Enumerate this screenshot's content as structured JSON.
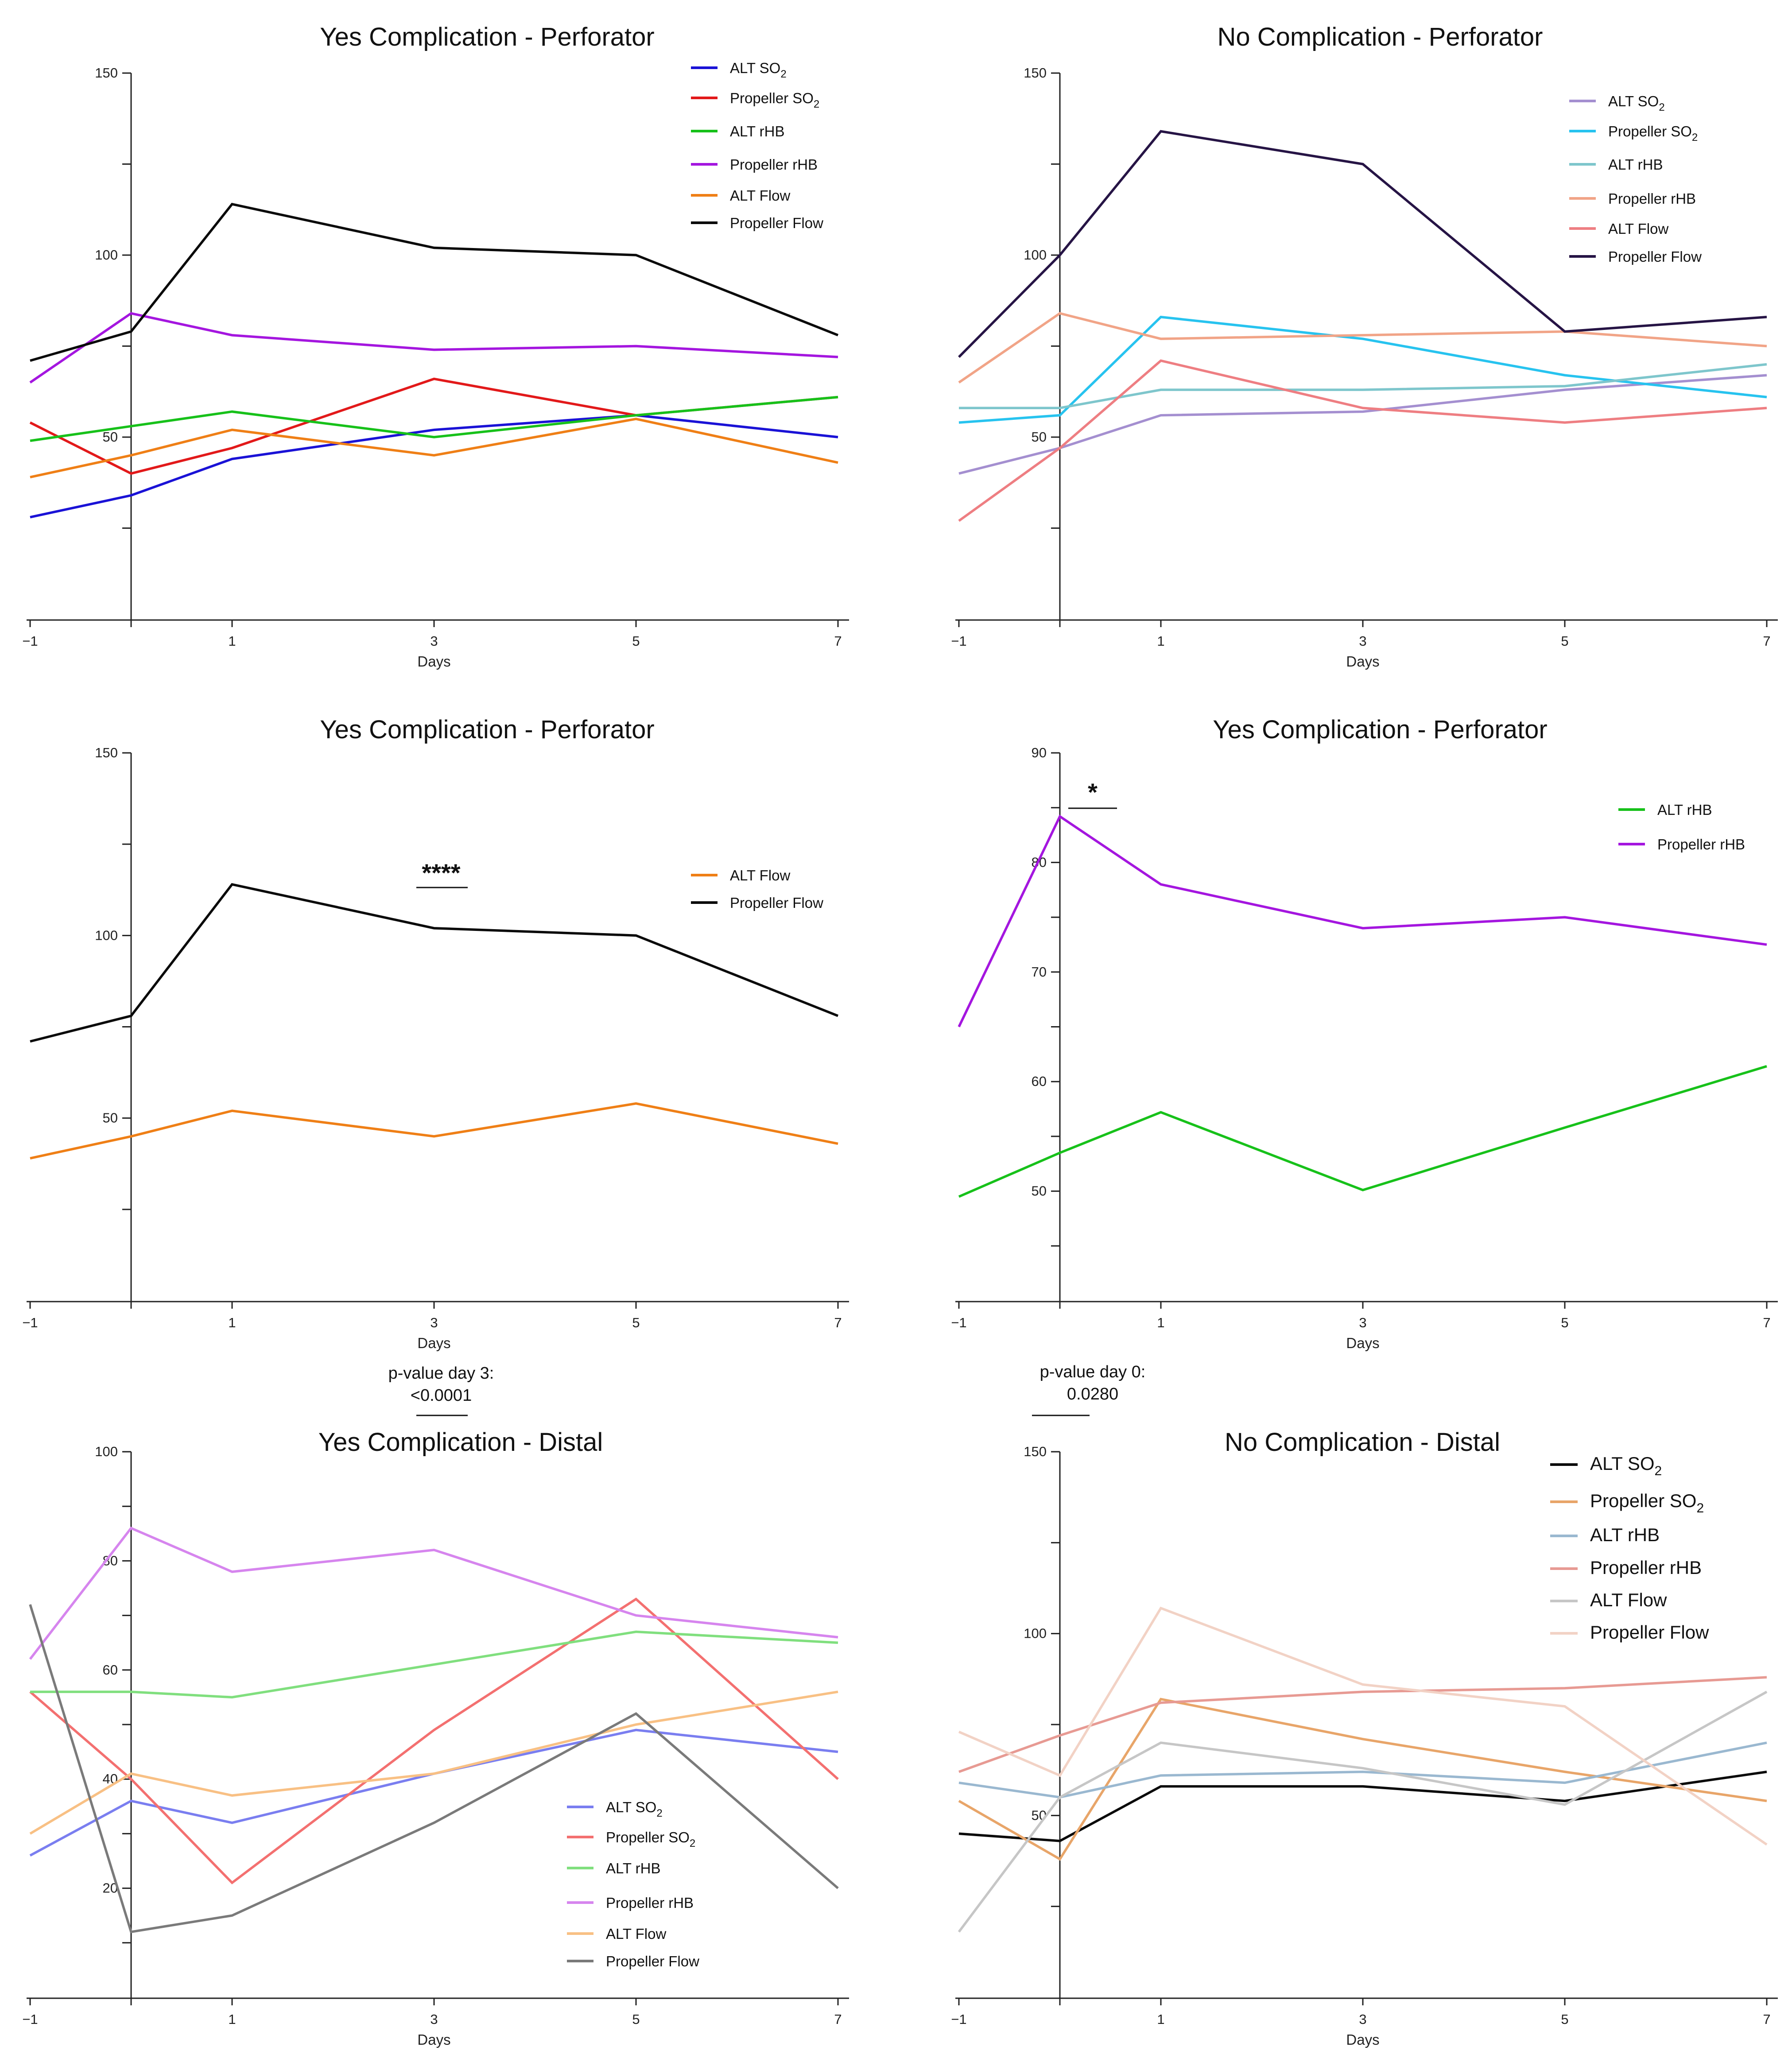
{
  "chart_data": [
    {
      "type": "line",
      "title": "Yes Complication - Perforator",
      "xlabel": "Days",
      "ylabel": "",
      "x": [
        -1,
        0,
        1,
        3,
        5,
        7
      ],
      "xticks": [
        "−1",
        "1",
        "3",
        "5",
        "7"
      ],
      "ylim": [
        0,
        150
      ],
      "yticks": [
        "50",
        "100",
        "150"
      ],
      "series": [
        {
          "name": "ALT SO",
          "sub": "2",
          "color": "#1a12d6",
          "values": [
            28,
            34,
            44,
            52,
            56,
            50
          ]
        },
        {
          "name": "Propeller SO",
          "sub": "2",
          "color": "#e2191a",
          "values": [
            54,
            40,
            47,
            66,
            56,
            61
          ]
        },
        {
          "name": "ALT rHB",
          "sub": "",
          "color": "#17c11a",
          "values": [
            49,
            53,
            57,
            50,
            56,
            61
          ]
        },
        {
          "name": "Propeller rHB",
          "sub": "",
          "color": "#a416df",
          "values": [
            65,
            84,
            78,
            74,
            75,
            72
          ]
        },
        {
          "name": "ALT Flow",
          "sub": "",
          "color": "#ef7f16",
          "values": [
            39,
            45,
            52,
            45,
            55,
            43
          ]
        },
        {
          "name": "Propeller Flow",
          "sub": "",
          "color": "#0a0a0a",
          "values": [
            71,
            79,
            114,
            102,
            100,
            78
          ]
        }
      ]
    },
    {
      "type": "line",
      "title": "No Complication - Perforator",
      "xlabel": "Days",
      "ylabel": "",
      "x": [
        -1,
        0,
        1,
        3,
        5,
        7
      ],
      "xticks": [
        "−1",
        "1",
        "3",
        "5",
        "7"
      ],
      "ylim": [
        0,
        150
      ],
      "yticks": [
        "50",
        "100",
        "150"
      ],
      "series": [
        {
          "name": "ALT SO",
          "sub": "2",
          "color": "#a48fd0",
          "values": [
            40,
            47,
            56,
            57,
            63,
            67
          ]
        },
        {
          "name": "Propeller SO",
          "sub": "2",
          "color": "#27c3ef",
          "values": [
            54,
            56,
            83,
            77,
            67,
            61
          ]
        },
        {
          "name": "ALT rHB",
          "sub": "",
          "color": "#7ec6cc",
          "values": [
            58,
            58,
            63,
            63,
            64,
            70
          ]
        },
        {
          "name": "Propeller rHB",
          "sub": "",
          "color": "#f1a487",
          "values": [
            65,
            84,
            77,
            78,
            79,
            75
          ]
        },
        {
          "name": "ALT Flow",
          "sub": "",
          "color": "#ee7e82",
          "values": [
            27,
            47,
            71,
            58,
            54,
            58
          ]
        },
        {
          "name": "Propeller Flow",
          "sub": "",
          "color": "#261445",
          "values": [
            72,
            100,
            134,
            125,
            79,
            83
          ]
        }
      ]
    },
    {
      "type": "line",
      "title": "Yes Complication - Perforator",
      "xlabel": "Days",
      "ylabel": "",
      "x": [
        -1,
        0,
        1,
        3,
        5,
        7
      ],
      "xticks": [
        "−1",
        "1",
        "3",
        "5",
        "7"
      ],
      "ylim": [
        0,
        150
      ],
      "yticks": [
        "50",
        "100",
        "150"
      ],
      "significance": "****",
      "pvalue_label": "p-value day 3:",
      "pvalue": "<0.0001",
      "series": [
        {
          "name": "ALT Flow",
          "sub": "",
          "color": "#ef7f16",
          "values": [
            39,
            45,
            52,
            45,
            54,
            43
          ]
        },
        {
          "name": "Propeller Flow",
          "sub": "",
          "color": "#0a0a0a",
          "values": [
            71,
            78,
            114,
            102,
            100,
            78
          ]
        }
      ]
    },
    {
      "type": "line",
      "title": "Yes Complication - Perforator",
      "xlabel": "Days",
      "ylabel": "",
      "x": [
        -1,
        0,
        1,
        3,
        5,
        7
      ],
      "xticks": [
        "−1",
        "1",
        "3",
        "5",
        "7"
      ],
      "ylim": [
        40,
        90
      ],
      "yticks": [
        "50",
        "60",
        "70",
        "80",
        "90"
      ],
      "significance": "*",
      "pvalue_label": "p-value day 0:",
      "pvalue": "0.0280",
      "series": [
        {
          "name": "ALT rHB",
          "sub": "",
          "color": "#17c11a",
          "values": [
            49.5,
            53.5,
            57.2,
            50.1,
            55.8,
            61.4
          ]
        },
        {
          "name": "Propeller rHB",
          "sub": "",
          "color": "#a416df",
          "values": [
            65,
            84.2,
            78,
            74,
            75,
            72.5
          ]
        }
      ]
    },
    {
      "type": "line",
      "title": "Yes Complication - Distal",
      "xlabel": "Days",
      "ylabel": "",
      "x": [
        -1,
        0,
        1,
        3,
        5,
        7
      ],
      "xticks": [
        "−1",
        "1",
        "3",
        "5",
        "7"
      ],
      "ylim": [
        0,
        100
      ],
      "yticks": [
        "20",
        "40",
        "60",
        "80",
        "100"
      ],
      "series": [
        {
          "name": "ALT SO",
          "sub": "2",
          "color": "#7a7ef0",
          "values": [
            26,
            36,
            32,
            41,
            49,
            45
          ]
        },
        {
          "name": "Propeller SO",
          "sub": "2",
          "color": "#f37070",
          "values": [
            56,
            40,
            21,
            49,
            73,
            40
          ]
        },
        {
          "name": "ALT rHB",
          "sub": "",
          "color": "#80df7e",
          "values": [
            56,
            56,
            55,
            61,
            67,
            65
          ]
        },
        {
          "name": "Propeller rHB",
          "sub": "",
          "color": "#d685ee",
          "values": [
            62,
            86,
            78,
            82,
            70,
            66
          ]
        },
        {
          "name": "ALT Flow",
          "sub": "",
          "color": "#f8c084",
          "values": [
            30,
            41,
            37,
            41,
            50,
            56
          ]
        },
        {
          "name": "Propeller Flow",
          "sub": "",
          "color": "#7a7a7a",
          "values": [
            72,
            12,
            15,
            32,
            52,
            20
          ]
        }
      ]
    },
    {
      "type": "line",
      "title": "No Complication - Distal",
      "xlabel": "Days",
      "ylabel": "",
      "x": [
        -1,
        0,
        1,
        3,
        5,
        7
      ],
      "xticks": [
        "−1",
        "1",
        "3",
        "5",
        "7"
      ],
      "ylim": [
        0,
        150
      ],
      "yticks": [
        "50",
        "100",
        "150"
      ],
      "series": [
        {
          "name": "ALT SO",
          "sub": "2",
          "color": "#0a0a0a",
          "values": [
            45,
            43,
            58,
            58,
            54,
            62
          ]
        },
        {
          "name": "Propeller SO",
          "sub": "2",
          "color": "#e8a569",
          "values": [
            54,
            38,
            82,
            71,
            62,
            54
          ]
        },
        {
          "name": "ALT rHB",
          "sub": "",
          "color": "#9ab8d0",
          "values": [
            59,
            55,
            61,
            62,
            59,
            70
          ]
        },
        {
          "name": "Propeller rHB",
          "sub": "",
          "color": "#e79a93",
          "values": [
            62,
            72,
            81,
            84,
            85,
            88
          ]
        },
        {
          "name": "ALT Flow",
          "sub": "",
          "color": "#c6c6c6",
          "values": [
            18,
            55,
            70,
            63,
            53,
            84
          ]
        },
        {
          "name": "Propeller Flow",
          "sub": "",
          "color": "#f2d2c5",
          "values": [
            73,
            61,
            107,
            86,
            80,
            42
          ]
        }
      ]
    }
  ]
}
